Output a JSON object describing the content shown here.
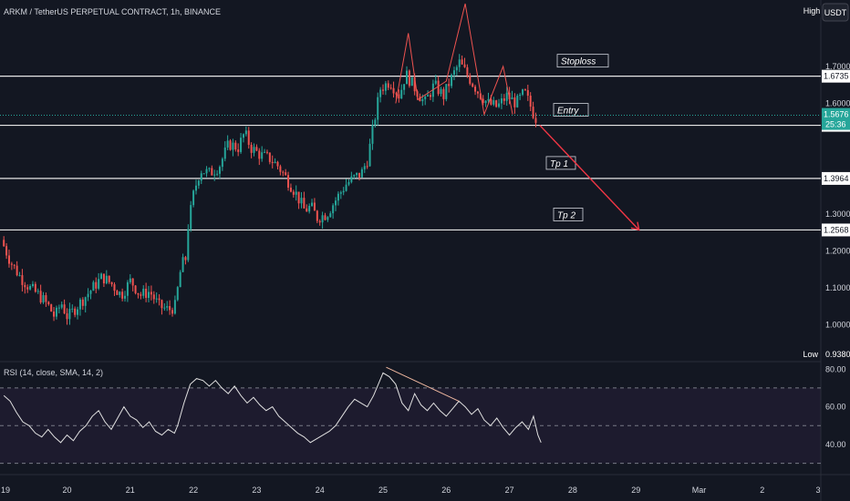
{
  "header": {
    "title": "ARKM / TetherUS PERPETUAL CONTRACT, 1h, BINANCE",
    "high_badge": "High",
    "currency_badge": "USDT",
    "low_badge": "Low"
  },
  "rsi": {
    "label": "RSI (14, close, SMA, 14, 2)",
    "levels": {
      "upper": 70,
      "middle": 50,
      "lower": 30
    },
    "ticks": [
      "80.00",
      "60.00",
      "40.00"
    ],
    "tick_values": [
      80,
      60,
      40
    ],
    "ylim": [
      24,
      84
    ]
  },
  "colors": {
    "background": "#131722",
    "up": "#26a69a",
    "down": "#ef5350",
    "level_line": "#e6e6e6",
    "projection": "#f23645",
    "price_tag": "#26a69a",
    "rsi_line": "#e0e0e0",
    "rsi_band": "#1d1b2e"
  },
  "chart_data": {
    "type": "candlestick",
    "symbol": "ARKM / TetherUS PERPETUAL CONTRACT",
    "interval": "1h",
    "exchange": "BINANCE",
    "ylim": [
      0.9,
      1.88
    ],
    "y_ticks": [
      "1.7000",
      "1.6000",
      "1.3000",
      "1.2000",
      "1.1000",
      "1.0000"
    ],
    "y_tick_values": [
      1.7,
      1.6,
      1.3,
      1.2,
      1.1,
      1.0
    ],
    "x_ticks": [
      "19",
      "20",
      "21",
      "22",
      "23",
      "24",
      "25",
      "26",
      "27",
      "28",
      "29",
      "Mar",
      "2",
      "3"
    ],
    "current_price": "1.5676",
    "current_price_value": 1.5676,
    "countdown": "25:36",
    "high": "",
    "low": "0.9380",
    "low_value": 0.938,
    "levels": [
      {
        "name": "Stoploss",
        "price": "1.6735",
        "value": 1.6735
      },
      {
        "name": "Entry",
        "price": "1.5404",
        "value": 1.5404
      },
      {
        "name": "Tp 1",
        "price": "1.3964",
        "value": 1.3964
      },
      {
        "name": "Tp 2",
        "price": "1.2568",
        "value": 1.2568
      }
    ],
    "price_path": [
      [
        19.0,
        1.23
      ],
      [
        19.15,
        1.17
      ],
      [
        19.3,
        1.13
      ],
      [
        19.45,
        1.1
      ],
      [
        19.6,
        1.08
      ],
      [
        19.75,
        1.05
      ],
      [
        19.85,
        1.02
      ],
      [
        19.95,
        1.06
      ],
      [
        20.05,
        1.02
      ],
      [
        20.15,
        1.04
      ],
      [
        20.3,
        1.07
      ],
      [
        20.45,
        1.1
      ],
      [
        20.6,
        1.13
      ],
      [
        20.75,
        1.11
      ],
      [
        20.9,
        1.08
      ],
      [
        21.05,
        1.12
      ],
      [
        21.2,
        1.08
      ],
      [
        21.35,
        1.09
      ],
      [
        21.5,
        1.05
      ],
      [
        21.65,
        1.04
      ],
      [
        21.75,
        1.05
      ],
      [
        21.85,
        1.16
      ],
      [
        21.92,
        1.18
      ],
      [
        21.95,
        1.26
      ],
      [
        22.05,
        1.36
      ],
      [
        22.15,
        1.42
      ],
      [
        22.3,
        1.41
      ],
      [
        22.45,
        1.43
      ],
      [
        22.6,
        1.49
      ],
      [
        22.75,
        1.48
      ],
      [
        22.85,
        1.52
      ],
      [
        22.95,
        1.48
      ],
      [
        23.1,
        1.46
      ],
      [
        23.25,
        1.45
      ],
      [
        23.38,
        1.43
      ],
      [
        23.5,
        1.4
      ],
      [
        23.65,
        1.36
      ],
      [
        23.8,
        1.31
      ],
      [
        23.9,
        1.32
      ],
      [
        24.0,
        1.29
      ],
      [
        24.15,
        1.3
      ],
      [
        24.3,
        1.34
      ],
      [
        24.45,
        1.38
      ],
      [
        24.6,
        1.4
      ],
      [
        24.7,
        1.41
      ],
      [
        24.8,
        1.45
      ],
      [
        24.9,
        1.55
      ],
      [
        25.0,
        1.64
      ],
      [
        25.15,
        1.66
      ],
      [
        25.3,
        1.62
      ],
      [
        25.4,
        1.68
      ],
      [
        25.55,
        1.64
      ],
      [
        25.7,
        1.6
      ],
      [
        25.85,
        1.65
      ],
      [
        26.0,
        1.62
      ],
      [
        26.1,
        1.66
      ],
      [
        26.25,
        1.71
      ],
      [
        26.4,
        1.67
      ],
      [
        26.55,
        1.63
      ],
      [
        26.7,
        1.6
      ],
      [
        26.85,
        1.59
      ],
      [
        27.0,
        1.62
      ],
      [
        27.15,
        1.6
      ],
      [
        27.28,
        1.63
      ],
      [
        27.38,
        1.59
      ],
      [
        27.45,
        1.56
      ]
    ],
    "projection": {
      "from": [
        27.48,
        1.5404
      ],
      "to": [
        29.05,
        1.2568
      ]
    }
  },
  "rsi_data": [
    [
      19.0,
      66
    ],
    [
      19.1,
      63
    ],
    [
      19.2,
      57
    ],
    [
      19.3,
      52
    ],
    [
      19.4,
      50
    ],
    [
      19.5,
      46
    ],
    [
      19.6,
      44
    ],
    [
      19.7,
      48
    ],
    [
      19.8,
      44
    ],
    [
      19.9,
      41
    ],
    [
      20.0,
      45
    ],
    [
      20.1,
      42
    ],
    [
      20.2,
      47
    ],
    [
      20.3,
      50
    ],
    [
      20.4,
      55
    ],
    [
      20.5,
      58
    ],
    [
      20.6,
      52
    ],
    [
      20.7,
      48
    ],
    [
      20.8,
      54
    ],
    [
      20.9,
      60
    ],
    [
      21.0,
      55
    ],
    [
      21.1,
      53
    ],
    [
      21.2,
      49
    ],
    [
      21.3,
      52
    ],
    [
      21.4,
      47
    ],
    [
      21.5,
      45
    ],
    [
      21.6,
      48
    ],
    [
      21.7,
      46
    ],
    [
      21.75,
      50
    ],
    [
      21.85,
      62
    ],
    [
      21.95,
      72
    ],
    [
      22.05,
      75
    ],
    [
      22.15,
      74
    ],
    [
      22.25,
      71
    ],
    [
      22.35,
      74
    ],
    [
      22.45,
      70
    ],
    [
      22.55,
      67
    ],
    [
      22.65,
      71
    ],
    [
      22.75,
      66
    ],
    [
      22.85,
      62
    ],
    [
      22.95,
      65
    ],
    [
      23.05,
      61
    ],
    [
      23.15,
      58
    ],
    [
      23.25,
      60
    ],
    [
      23.35,
      55
    ],
    [
      23.45,
      52
    ],
    [
      23.55,
      49
    ],
    [
      23.65,
      46
    ],
    [
      23.75,
      44
    ],
    [
      23.85,
      41
    ],
    [
      23.95,
      43
    ],
    [
      24.05,
      45
    ],
    [
      24.15,
      47
    ],
    [
      24.25,
      50
    ],
    [
      24.35,
      55
    ],
    [
      24.45,
      60
    ],
    [
      24.55,
      64
    ],
    [
      24.65,
      62
    ],
    [
      24.75,
      60
    ],
    [
      24.85,
      66
    ],
    [
      24.95,
      74
    ],
    [
      25.0,
      78
    ],
    [
      25.1,
      76
    ],
    [
      25.2,
      72
    ],
    [
      25.3,
      62
    ],
    [
      25.4,
      58
    ],
    [
      25.5,
      67
    ],
    [
      25.6,
      61
    ],
    [
      25.7,
      58
    ],
    [
      25.8,
      62
    ],
    [
      25.9,
      58
    ],
    [
      26.0,
      55
    ],
    [
      26.1,
      59
    ],
    [
      26.2,
      63
    ],
    [
      26.3,
      60
    ],
    [
      26.4,
      56
    ],
    [
      26.5,
      59
    ],
    [
      26.6,
      53
    ],
    [
      26.7,
      50
    ],
    [
      26.8,
      54
    ],
    [
      26.9,
      49
    ],
    [
      27.0,
      45
    ],
    [
      27.1,
      49
    ],
    [
      27.2,
      52
    ],
    [
      27.3,
      48
    ],
    [
      27.38,
      55
    ],
    [
      27.45,
      45
    ],
    [
      27.5,
      41
    ]
  ]
}
